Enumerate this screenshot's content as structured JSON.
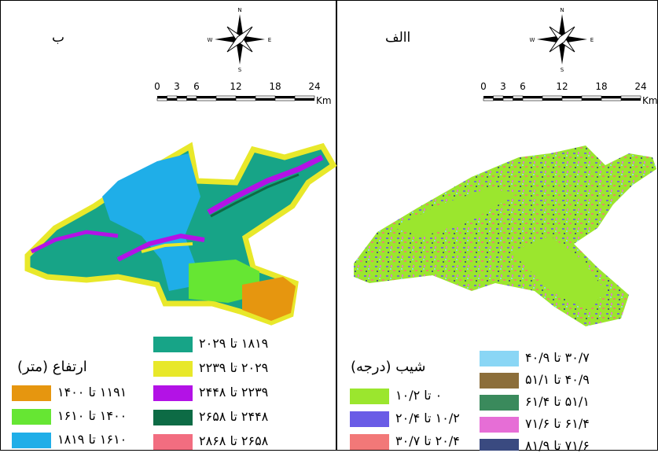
{
  "panels": [
    {
      "label": "ب",
      "compass": {
        "n": "N",
        "s": "S",
        "e": "E",
        "w": "W"
      },
      "scale": {
        "ticks": [
          0,
          3,
          6,
          12,
          18,
          24
        ],
        "unit": "Km"
      },
      "legend": {
        "title": "ارتفاع (متر)",
        "items": [
          {
            "label": "۱۱۹۱ تا ۱۴۰۰",
            "color": "#e6960f"
          },
          {
            "label": "۱۴۰۰ تا ۱۶۱۰",
            "color": "#66e633"
          },
          {
            "label": "۱۶۱۰ تا ۱۸۱۹",
            "color": "#1faee8"
          },
          {
            "label": "۱۸۱۹ تا ۲۰۲۹",
            "color": "#17a487"
          },
          {
            "label": "۲۰۲۹ تا ۲۲۳۹",
            "color": "#e8e82a"
          },
          {
            "label": "۲۲۳۹ تا ۲۴۴۸",
            "color": "#b312e6"
          },
          {
            "label": "۲۴۴۸ تا ۲۶۵۸",
            "color": "#0d6b45"
          },
          {
            "label": "۲۶۵۸ تا ۲۸۶۸",
            "color": "#f26d80"
          }
        ]
      }
    },
    {
      "label": "االف",
      "compass": {
        "n": "N",
        "s": "S",
        "e": "E",
        "w": "W"
      },
      "scale": {
        "ticks": [
          0,
          3,
          6,
          12,
          18,
          24
        ],
        "unit": "Km"
      },
      "legend": {
        "title": "شیب (درجه)",
        "items": [
          {
            "label": "۰ تا ۱۰/۲",
            "color": "#9be62e"
          },
          {
            "label": "۱۰/۲ تا ۲۰/۴",
            "color": "#6a5ce6"
          },
          {
            "label": "۲۰/۴ تا ۳۰/۷",
            "color": "#f27878"
          },
          {
            "label": "۳۰/۷ تا ۴۰/۹",
            "color": "#8ad6f5"
          },
          {
            "label": "۴۰/۹ تا ۵۱/۱",
            "color": "#8c6e3a"
          },
          {
            "label": "۵۱/۱ تا ۶۱/۴",
            "color": "#3a8a5c"
          },
          {
            "label": "۶۱/۴ تا ۷۱/۶",
            "color": "#e66ed6"
          },
          {
            "label": "۷۱/۶ تا ۸۱/۹",
            "color": "#3a4a80"
          }
        ]
      }
    }
  ]
}
